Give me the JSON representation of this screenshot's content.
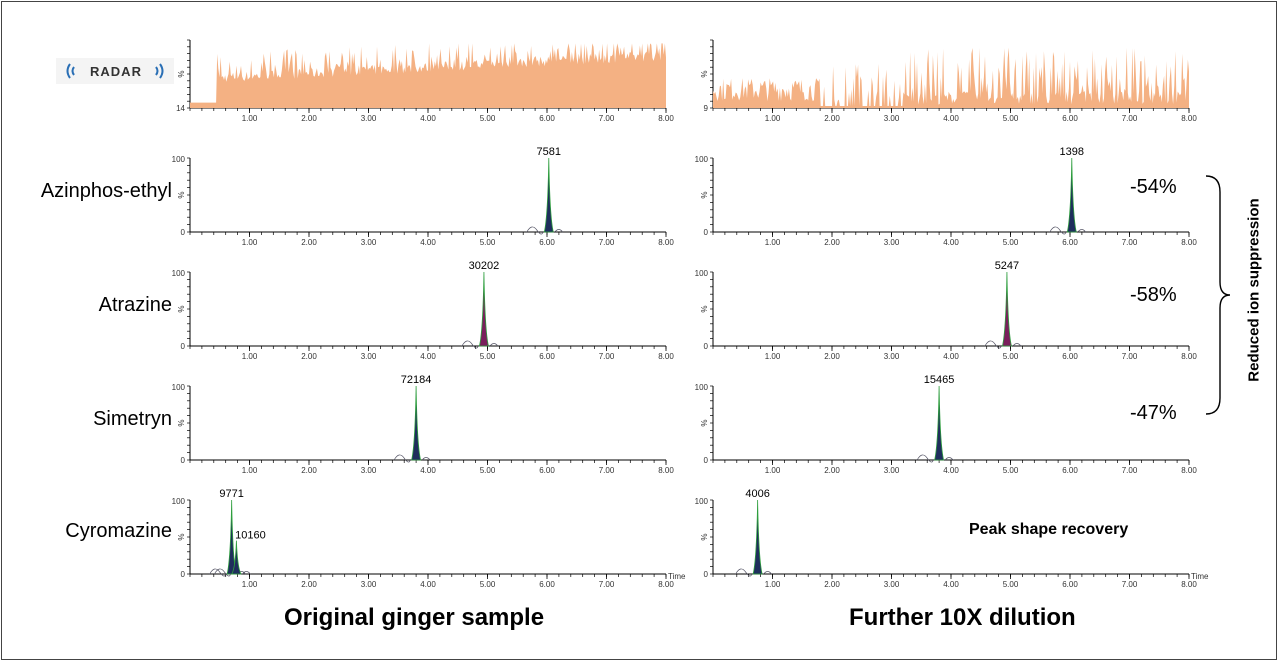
{
  "panels": {
    "left_title": "Original ginger sample",
    "right_title": "Further 10X dilution"
  },
  "logo_text": "RADAR",
  "compounds": [
    {
      "name": "Azinphos-ethyl",
      "change": "-54%"
    },
    {
      "name": "Atrazine",
      "change": "-58%"
    },
    {
      "name": "Simetryn",
      "change": "-47%"
    },
    {
      "name": "Cyromazine",
      "change": ""
    }
  ],
  "annotations": {
    "bracket_label": "Reduced ion suppression",
    "peak_shape_note": "Peak shape recovery"
  },
  "colors": {
    "tic_fill": "#f4b183",
    "peak_navy": "#1f2e5c",
    "peak_green": "#2e9e3e",
    "peak_purple": "#7a1f5c"
  },
  "chart_data": [
    {
      "type": "area",
      "name": "TIC original",
      "panel": "left",
      "x_ticks": [
        "1.00",
        "2.00",
        "3.00",
        "4.00",
        "5.00",
        "6.00",
        "7.00",
        "8.00"
      ],
      "xlim": [
        0,
        8
      ],
      "ymin_label": "14",
      "ylabel": "%",
      "x_start": 0.45
    },
    {
      "type": "area",
      "name": "TIC diluted",
      "panel": "right",
      "x_ticks": [
        "1.00",
        "2.00",
        "3.00",
        "4.00",
        "5.00",
        "6.00",
        "7.00",
        "8.00"
      ],
      "xlim": [
        0,
        8
      ],
      "ymin_label": "9",
      "ylabel": "%"
    },
    {
      "type": "line",
      "compound": "Azinphos-ethyl",
      "panel": "left",
      "xlim": [
        0,
        8
      ],
      "ylim": [
        0,
        100
      ],
      "y_ticks": [
        "0",
        "100"
      ],
      "ylabel": "%",
      "x_ticks": [
        "1.00",
        "2.00",
        "3.00",
        "4.00",
        "5.00",
        "6.00",
        "7.00",
        "8.00"
      ],
      "peaks": [
        {
          "rt": 6.03,
          "height": 100,
          "label": "7581"
        }
      ]
    },
    {
      "type": "line",
      "compound": "Azinphos-ethyl",
      "panel": "right",
      "xlim": [
        0,
        8
      ],
      "ylim": [
        0,
        100
      ],
      "y_ticks": [
        "0",
        "100"
      ],
      "ylabel": "%",
      "x_ticks": [
        "1.00",
        "2.00",
        "3.00",
        "4.00",
        "5.00",
        "6.00",
        "7.00",
        "8.00"
      ],
      "peaks": [
        {
          "rt": 6.03,
          "height": 100,
          "label": "1398"
        }
      ]
    },
    {
      "type": "line",
      "compound": "Atrazine",
      "panel": "left",
      "xlim": [
        0,
        8
      ],
      "ylim": [
        0,
        100
      ],
      "y_ticks": [
        "0",
        "100"
      ],
      "ylabel": "%",
      "x_ticks": [
        "1.00",
        "2.00",
        "3.00",
        "4.00",
        "5.00",
        "6.00",
        "7.00",
        "8.00"
      ],
      "peaks": [
        {
          "rt": 4.94,
          "height": 100,
          "label": "30202"
        }
      ]
    },
    {
      "type": "line",
      "compound": "Atrazine",
      "panel": "right",
      "xlim": [
        0,
        8
      ],
      "ylim": [
        0,
        100
      ],
      "y_ticks": [
        "0",
        "100"
      ],
      "ylabel": "%",
      "x_ticks": [
        "1.00",
        "2.00",
        "3.00",
        "4.00",
        "5.00",
        "6.00",
        "7.00",
        "8.00"
      ],
      "peaks": [
        {
          "rt": 4.94,
          "height": 100,
          "label": "5247"
        }
      ]
    },
    {
      "type": "line",
      "compound": "Simetryn",
      "panel": "left",
      "xlim": [
        0,
        8
      ],
      "ylim": [
        0,
        100
      ],
      "y_ticks": [
        "0",
        "100"
      ],
      "ylabel": "%",
      "x_ticks": [
        "1.00",
        "2.00",
        "3.00",
        "4.00",
        "5.00",
        "6.00",
        "7.00",
        "8.00"
      ],
      "peaks": [
        {
          "rt": 3.8,
          "height": 100,
          "label": "72184"
        }
      ]
    },
    {
      "type": "line",
      "compound": "Simetryn",
      "panel": "right",
      "xlim": [
        0,
        8
      ],
      "ylim": [
        0,
        100
      ],
      "y_ticks": [
        "0",
        "100"
      ],
      "ylabel": "%",
      "x_ticks": [
        "1.00",
        "2.00",
        "3.00",
        "4.00",
        "5.00",
        "6.00",
        "7.00",
        "8.00"
      ],
      "peaks": [
        {
          "rt": 3.8,
          "height": 100,
          "label": "15465"
        }
      ]
    },
    {
      "type": "line",
      "compound": "Cyromazine",
      "panel": "left",
      "xlim": [
        0,
        8
      ],
      "ylim": [
        0,
        100
      ],
      "y_ticks": [
        "0",
        "100"
      ],
      "ylabel": "%",
      "xlabel": "Time",
      "x_ticks": [
        "1.00",
        "2.00",
        "3.00",
        "4.00",
        "5.00",
        "6.00",
        "7.00",
        "8.00"
      ],
      "peaks": [
        {
          "rt": 0.7,
          "height": 100,
          "label": "9771"
        },
        {
          "rt": 0.78,
          "height": 45,
          "label": "10160"
        }
      ]
    },
    {
      "type": "line",
      "compound": "Cyromazine",
      "panel": "right",
      "xlim": [
        0,
        8
      ],
      "ylim": [
        0,
        100
      ],
      "y_ticks": [
        "0",
        "100"
      ],
      "ylabel": "%",
      "xlabel": "Time",
      "x_ticks": [
        "1.00",
        "2.00",
        "3.00",
        "4.00",
        "5.00",
        "6.00",
        "7.00",
        "8.00"
      ],
      "peaks": [
        {
          "rt": 0.75,
          "height": 100,
          "label": "4006"
        }
      ]
    }
  ]
}
